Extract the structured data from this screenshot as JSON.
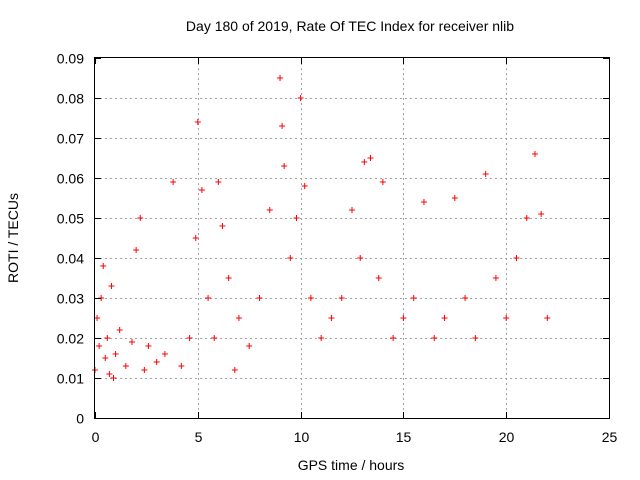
{
  "chart_data": {
    "type": "scatter",
    "title": "Day 180 of 2019, Rate Of TEC Index for receiver nlib",
    "xlabel": "GPS time / hours",
    "ylabel": "ROTI / TECUs",
    "xlim": [
      0,
      25
    ],
    "ylim": [
      0,
      0.09
    ],
    "x_ticks": [
      "0",
      "5",
      "10",
      "15",
      "20",
      "25"
    ],
    "y_ticks": [
      "0",
      "0.01",
      "0.02",
      "0.03",
      "0.04",
      "0.05",
      "0.06",
      "0.07",
      "0.08",
      "0.09"
    ],
    "grid": true,
    "marker": "+",
    "color": "#ff0000",
    "series": [
      {
        "x": [
          0.0,
          0.1,
          0.2,
          0.3,
          0.4,
          0.5,
          0.6,
          0.7,
          0.8,
          0.9,
          1.0,
          1.2,
          1.5,
          1.8,
          2.0,
          2.2,
          2.4,
          2.6,
          3.0,
          3.4,
          3.8,
          4.2,
          4.6,
          4.9,
          5.0,
          5.2,
          5.5,
          5.8,
          6.0,
          6.2,
          6.5,
          6.8,
          7.0,
          7.5,
          8.0,
          8.5,
          9.0,
          9.1,
          9.2,
          9.5,
          9.8,
          10.0,
          10.2,
          10.5,
          11.0,
          11.5,
          12.0,
          12.5,
          12.9,
          13.1,
          13.4,
          13.8,
          14.0,
          14.5,
          15.0,
          15.5,
          16.0,
          16.5,
          17.0,
          17.5,
          18.0,
          18.5,
          19.0,
          19.5,
          20.0,
          20.5,
          21.0,
          21.4,
          21.7,
          22.0
        ],
        "y": [
          0.012,
          0.025,
          0.018,
          0.03,
          0.038,
          0.015,
          0.02,
          0.011,
          0.033,
          0.01,
          0.016,
          0.022,
          0.013,
          0.019,
          0.042,
          0.05,
          0.012,
          0.018,
          0.014,
          0.016,
          0.059,
          0.013,
          0.02,
          0.045,
          0.074,
          0.057,
          0.03,
          0.02,
          0.059,
          0.048,
          0.035,
          0.012,
          0.025,
          0.018,
          0.03,
          0.052,
          0.085,
          0.073,
          0.063,
          0.04,
          0.05,
          0.08,
          0.058,
          0.03,
          0.02,
          0.025,
          0.03,
          0.052,
          0.04,
          0.064,
          0.065,
          0.035,
          0.059,
          0.02,
          0.025,
          0.03,
          0.054,
          0.02,
          0.025,
          0.055,
          0.03,
          0.02,
          0.061,
          0.035,
          0.025,
          0.04,
          0.05,
          0.066,
          0.051,
          0.025
        ]
      }
    ]
  }
}
